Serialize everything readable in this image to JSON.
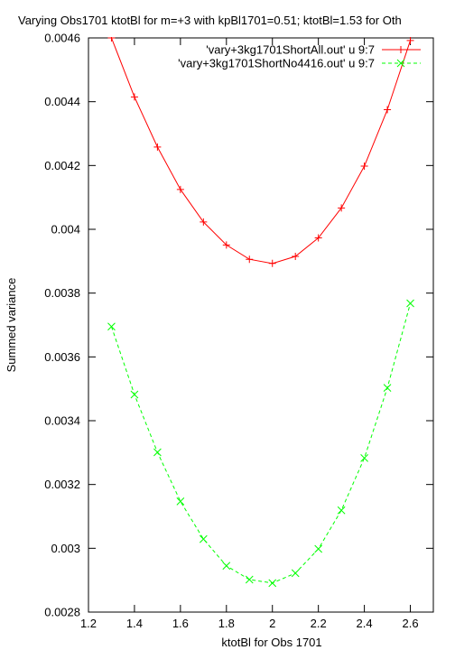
{
  "chart_data": {
    "type": "line",
    "title": "Varying Obs1701 ktotBl for m=+3 with kpBl1701=0.51; ktotBl=1.53 for Oth",
    "xlabel": "ktotBl for Obs 1701",
    "ylabel": "Summed variance",
    "xlim": [
      1.2,
      2.7
    ],
    "ylim": [
      0.0028,
      0.0046
    ],
    "xticks": [
      "1.2",
      "1.4",
      "1.6",
      "1.8",
      "2",
      "2.2",
      "2.4",
      "2.6"
    ],
    "yticks": [
      "0.0028",
      "0.003",
      "0.0032",
      "0.0034",
      "0.0036",
      "0.0038",
      "0.004",
      "0.0042",
      "0.0044",
      "0.0046"
    ],
    "grid": false,
    "legend_position": "top-right",
    "series": [
      {
        "name": "'vary+3kg1701ShortAll.out' u 9:7",
        "color": "#ff0000",
        "marker": "plus",
        "dash": "solid",
        "x": [
          1.3,
          1.4,
          1.5,
          1.6,
          1.7,
          1.8,
          1.9,
          2.0,
          2.1,
          2.2,
          2.3,
          2.4,
          2.5,
          2.6
        ],
        "y": [
          0.0046,
          0.004415,
          0.004258,
          0.004125,
          0.004023,
          0.003951,
          0.003906,
          0.003893,
          0.003915,
          0.003973,
          0.004067,
          0.004198,
          0.004375,
          0.004592
        ]
      },
      {
        "name": "'vary+3kg1701ShortNo4416.out' u 9:7",
        "color": "#00ff00",
        "marker": "cross",
        "dash": "dashed",
        "x": [
          1.3,
          1.4,
          1.5,
          1.6,
          1.7,
          1.8,
          1.9,
          2.0,
          2.1,
          2.2,
          2.3,
          2.4,
          2.5,
          2.6
        ],
        "y": [
          0.003695,
          0.003482,
          0.003301,
          0.003147,
          0.003029,
          0.002945,
          0.002902,
          0.002891,
          0.002922,
          0.002998,
          0.003119,
          0.003283,
          0.003503,
          0.003768
        ]
      }
    ]
  }
}
